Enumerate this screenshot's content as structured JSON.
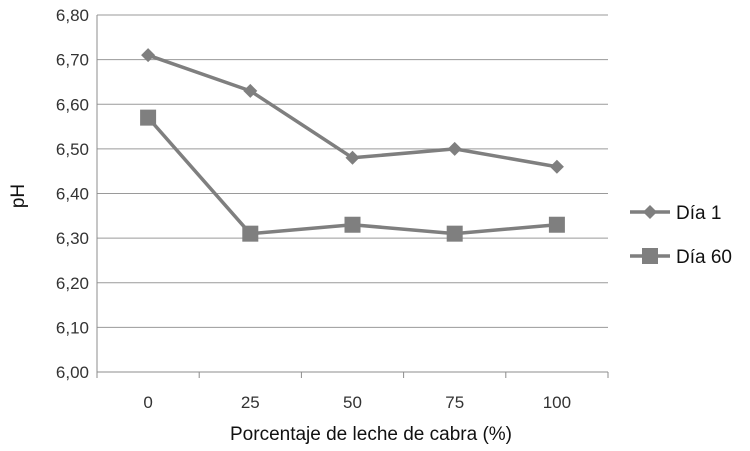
{
  "chart_data": {
    "type": "line",
    "title": "",
    "xlabel": "Porcentaje de leche de cabra (%)",
    "ylabel": "pH",
    "categories": [
      "0",
      "25",
      "50",
      "75",
      "100"
    ],
    "ylim": [
      6.0,
      6.8
    ],
    "yticks": [
      "6,00",
      "6,10",
      "6,20",
      "6,30",
      "6,40",
      "6,50",
      "6,60",
      "6,70",
      "6,80"
    ],
    "grid": "horizontal",
    "legend_position": "right",
    "series": [
      {
        "name": "Día 1",
        "marker": "diamond",
        "color": "#7f7f7f",
        "values": [
          6.71,
          6.63,
          6.48,
          6.5,
          6.46
        ]
      },
      {
        "name": "Día 60",
        "marker": "square",
        "color": "#7f7f7f",
        "values": [
          6.57,
          6.31,
          6.33,
          6.31,
          6.33
        ]
      }
    ]
  }
}
